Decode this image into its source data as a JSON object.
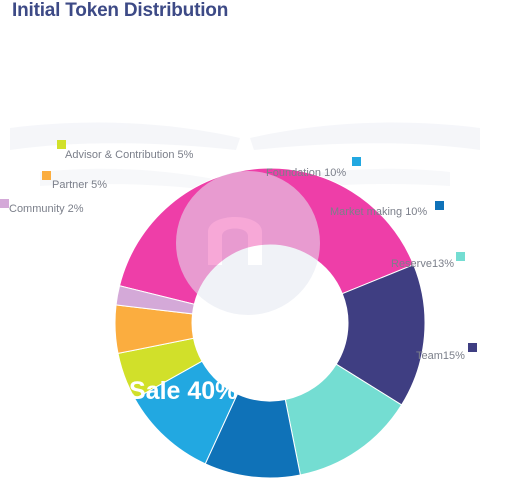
{
  "title": "Initial Token Distribution",
  "chart_data": {
    "type": "pie",
    "title": "Initial Token Distribution",
    "categories": [
      "Sale",
      "Team",
      "Reserve",
      "Market making",
      "Foundation",
      "Advisor & Contribution",
      "Partner",
      "Community"
    ],
    "values": [
      40,
      15,
      13,
      10,
      10,
      5,
      5,
      2
    ],
    "labels": [
      "Sale 40%",
      "Team15%",
      "Reserve13%",
      "Market making 10%",
      "Foundation 10%",
      "Advisor & Contribution 5%",
      "Partner 5%",
      "Community 2%"
    ],
    "colors": [
      "#ee3ea8",
      "#3f3e82",
      "#74ddd2",
      "#0f72b8",
      "#22a8e1",
      "#d1e02a",
      "#fbad3f",
      "#d4a9d8"
    ],
    "donut": true
  }
}
